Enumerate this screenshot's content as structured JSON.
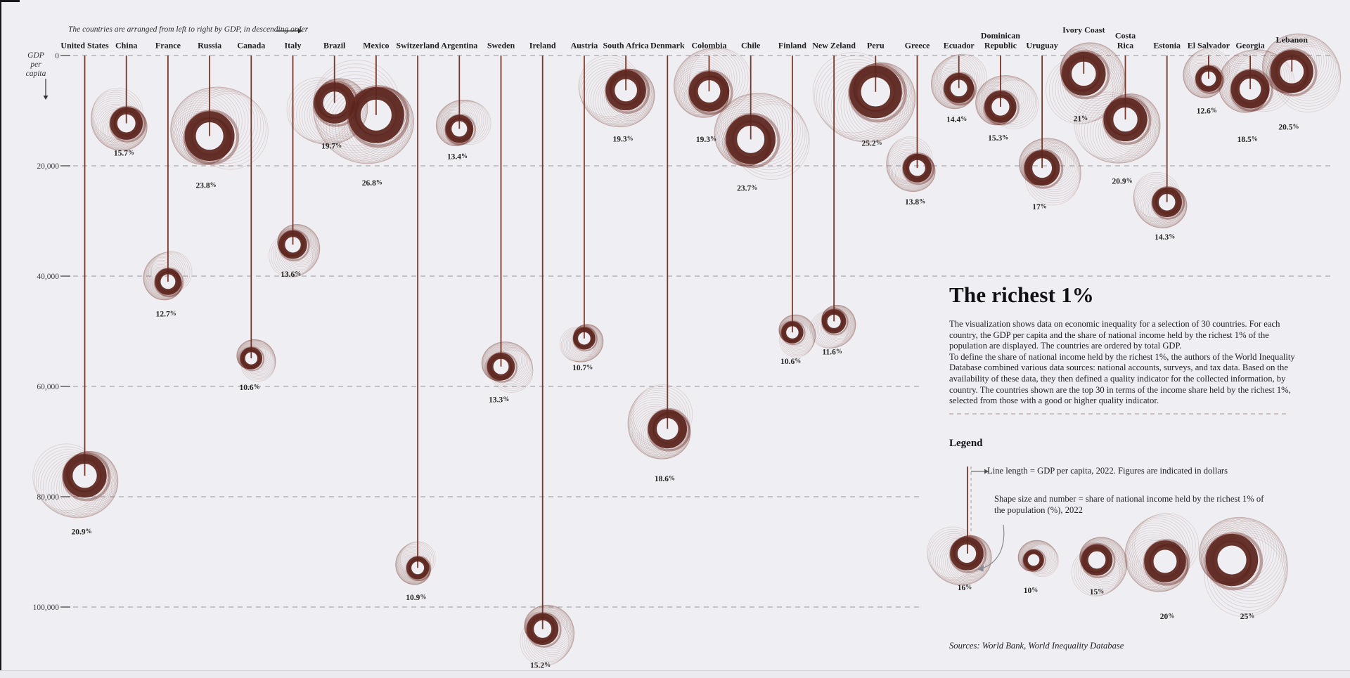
{
  "canvas": {
    "background": "#efeef2",
    "spiral_color": "#71332a",
    "spiral_ring_color": "#5a241c",
    "line_color": "#7a372c",
    "grid_color": "#97969c",
    "divider_color": "#b5a3a1",
    "text_color": "#1d1c1e"
  },
  "header": {
    "annotation": "The countries are arranged from left to right by GDP, in descending order",
    "arrow_icon": "right-arrow"
  },
  "axis": {
    "label_lines": [
      "GDP",
      "per",
      "capita"
    ],
    "arrow_icon": "down-arrow",
    "ticks": [
      {
        "label": "0",
        "value": 0
      },
      {
        "label": "20,000",
        "value": 20000
      },
      {
        "label": "40,000",
        "value": 40000
      },
      {
        "label": "60,000",
        "value": 60000
      },
      {
        "label": "80,000",
        "value": 80000
      },
      {
        "label": "100,000",
        "value": 100000
      }
    ]
  },
  "chart_data": {
    "type": "scatter",
    "variant": "hanging spirograph chart: vertical line length = GDP per capita, spiral size = income share of richest 1%",
    "title": "The richest 1%",
    "xlabel": "Countries ordered left to right by total GDP, descending",
    "ylabel": "GDP per capita (dollars), 2022",
    "ylim": [
      0,
      100000
    ],
    "grid": "dashed horizontal lines every 20,000",
    "legend_position": "right panel",
    "countries": [
      {
        "name": "United States",
        "share_label": "20.9%",
        "share_pct": 20.9,
        "gdp_per_capita": 76200
      },
      {
        "name": "China",
        "share_label": "15.7%",
        "share_pct": 15.7,
        "gdp_per_capita": 12300
      },
      {
        "name": "France",
        "share_label": "12.7%",
        "share_pct": 12.7,
        "gdp_per_capita": 41000
      },
      {
        "name": "Russia",
        "share_label": "23.8%",
        "share_pct": 23.8,
        "gdp_per_capita": 14600
      },
      {
        "name": "Canada",
        "share_label": "10.6%",
        "share_pct": 10.6,
        "gdp_per_capita": 54900
      },
      {
        "name": "Italy",
        "share_label": "13.6%",
        "share_pct": 13.6,
        "gdp_per_capita": 34300
      },
      {
        "name": "Brazil",
        "share_label": "19.7%",
        "share_pct": 19.7,
        "gdp_per_capita": 8600
      },
      {
        "name": "Mexico",
        "share_label": "26.8%",
        "share_pct": 26.8,
        "gdp_per_capita": 10800
      },
      {
        "name": "Switzerland",
        "share_label": "10.9%",
        "share_pct": 10.9,
        "gdp_per_capita": 92900
      },
      {
        "name": "Argentina",
        "share_label": "13.4%",
        "share_pct": 13.4,
        "gdp_per_capita": 13300
      },
      {
        "name": "Sweden",
        "share_label": "13.3%",
        "share_pct": 13.3,
        "gdp_per_capita": 56400
      },
      {
        "name": "Ireland",
        "share_label": "15.2%",
        "share_pct": 15.2,
        "gdp_per_capita": 104000
      },
      {
        "name": "Austria",
        "share_label": "10.7%",
        "share_pct": 10.7,
        "gdp_per_capita": 51300
      },
      {
        "name": "South Africa",
        "share_label": "19.3%",
        "share_pct": 19.3,
        "gdp_per_capita": 6300
      },
      {
        "name": "Denmark",
        "share_label": "18.6%",
        "share_pct": 18.6,
        "gdp_per_capita": 67700
      },
      {
        "name": "Colombia",
        "share_label": "19.3%",
        "share_pct": 19.3,
        "gdp_per_capita": 6500
      },
      {
        "name": "Chile",
        "share_label": "23.7%",
        "share_pct": 23.7,
        "gdp_per_capita": 15200
      },
      {
        "name": "Finland",
        "share_label": "10.6%",
        "share_pct": 10.6,
        "gdp_per_capita": 50200
      },
      {
        "name": "New Zeland",
        "share_label": "11.6%",
        "share_pct": 11.6,
        "gdp_per_capita": 48200
      },
      {
        "name": "Peru",
        "share_label": "25.2%",
        "share_pct": 25.2,
        "gdp_per_capita": 6600
      },
      {
        "name": "Greece",
        "share_label": "13.8%",
        "share_pct": 13.8,
        "gdp_per_capita": 20400
      },
      {
        "name": "Ecuador",
        "share_label": "14.4%",
        "share_pct": 14.4,
        "gdp_per_capita": 5900
      },
      {
        "name": "Dominican Republic",
        "share_label": "15.3%",
        "share_pct": 15.3,
        "gdp_per_capita": 9300
      },
      {
        "name": "Uruguay",
        "share_label": "17%",
        "share_pct": 17,
        "gdp_per_capita": 20400
      },
      {
        "name": "Ivory Coast",
        "share_label": "21%",
        "share_pct": 21,
        "gdp_per_capita": 3300
      },
      {
        "name": "Costa Rica",
        "share_label": "20.9%",
        "share_pct": 20.9,
        "gdp_per_capita": 11600
      },
      {
        "name": "Estonia",
        "share_label": "14.3%",
        "share_pct": 14.3,
        "gdp_per_capita": 26600
      },
      {
        "name": "El Salvador",
        "share_label": "12.6%",
        "share_pct": 12.6,
        "gdp_per_capita": 4200
      },
      {
        "name": "Georgia",
        "share_label": "18.5%",
        "share_pct": 18.5,
        "gdp_per_capita": 6100
      },
      {
        "name": "Lebanon",
        "share_label": "20.5%",
        "share_pct": 20.5,
        "gdp_per_capita": 2900
      }
    ]
  },
  "panel": {
    "title": "The richest 1%",
    "paragraph1": "The visualization shows data on economic inequality for a selection of 30 countries. For each country, the GDP per capita and the share of national income held by the richest 1% of the population are displayed. The countries are ordered by total GDP.",
    "paragraph2": "To define the share of national income held by the richest 1%, the authors of the World Inequality Database combined various data sources: national accounts, surveys, and tax data. Based on the availability of these data, they then defined a quality indicator for the collected information, by country. The countries shown are the top 30 in terms of the income share held by the richest 1%, selected from those with a good or higher quality indicator."
  },
  "legend": {
    "heading": "Legend",
    "line_label": "Line length = GDP per capita, 2022. Figures are indicated in dollars",
    "shape_label": "Shape size and number = share of national income held by the richest 1% of the population (%), 2022",
    "examples": [
      {
        "label": "16%",
        "pct": 16
      },
      {
        "label": "10%",
        "pct": 10
      },
      {
        "label": "15%",
        "pct": 15
      },
      {
        "label": "20%",
        "pct": 20
      },
      {
        "label": "25%",
        "pct": 25
      }
    ],
    "sources": "Sources: World Bank, World Inequality Database"
  }
}
